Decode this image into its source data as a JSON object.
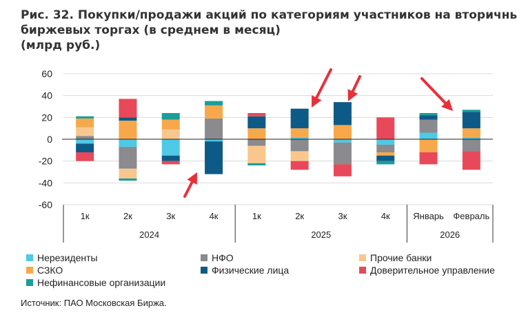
{
  "title_lines": [
    "Рис. 32. Покупки/продажи акций по категориям участников на вторичных",
    "биржевых торгах (в среднем в месяц)",
    "(млрд руб.)"
  ],
  "source": "Источник: ПАО Московская Биржа.",
  "chart_data": {
    "type": "bar",
    "stacked": true,
    "categories": [
      "1к",
      "2к",
      "3к",
      "4к",
      "1к",
      "2к",
      "3к",
      "4к",
      "Январь",
      "Февраль"
    ],
    "groups": [
      {
        "label": "2024",
        "categories": [
          "1к",
          "2к",
          "3к",
          "4к"
        ]
      },
      {
        "label": "2025",
        "categories": [
          "1к",
          "2к",
          "3к",
          "4к"
        ]
      },
      {
        "label": "2026",
        "categories": [
          "Январь",
          "Февраль"
        ]
      }
    ],
    "ylim": [
      -60,
      60
    ],
    "yticks": [
      -60,
      -40,
      -20,
      0,
      20,
      40,
      60
    ],
    "legend_position": "bottom",
    "series": [
      {
        "name": "Нерезиденты",
        "color": "#4ec9e6",
        "values": [
          -4,
          -7,
          -15,
          -2,
          0,
          2,
          -3,
          -5,
          6,
          2
        ]
      },
      {
        "name": "НФО",
        "color": "#8a8a8f",
        "values": [
          3,
          -20,
          0,
          19,
          -6,
          -11,
          -20,
          -7,
          12,
          -11
        ]
      },
      {
        "name": "Прочие банки",
        "color": "#f9c78d",
        "values": [
          8,
          -9,
          9,
          0,
          -16,
          -9,
          0,
          0,
          0,
          0
        ]
      },
      {
        "name": "СЗКО",
        "color": "#f7a84a",
        "values": [
          8,
          17,
          9,
          12,
          10,
          8,
          13,
          -3,
          -12,
          8
        ]
      },
      {
        "name": "Физические лица",
        "color": "#0e5a86",
        "values": [
          -8,
          3,
          -5,
          -30,
          11,
          18,
          21,
          -5,
          4,
          15
        ]
      },
      {
        "name": "Доверительное управление",
        "color": "#e8495a",
        "values": [
          -8,
          17,
          -3,
          0,
          3,
          -8,
          -11,
          20,
          -11,
          -17
        ]
      },
      {
        "name": "Нефинансовые организации",
        "color": "#1a9e99",
        "values": [
          2,
          -2,
          6,
          4,
          -2,
          0,
          0,
          -3,
          2,
          2
        ]
      }
    ]
  }
}
